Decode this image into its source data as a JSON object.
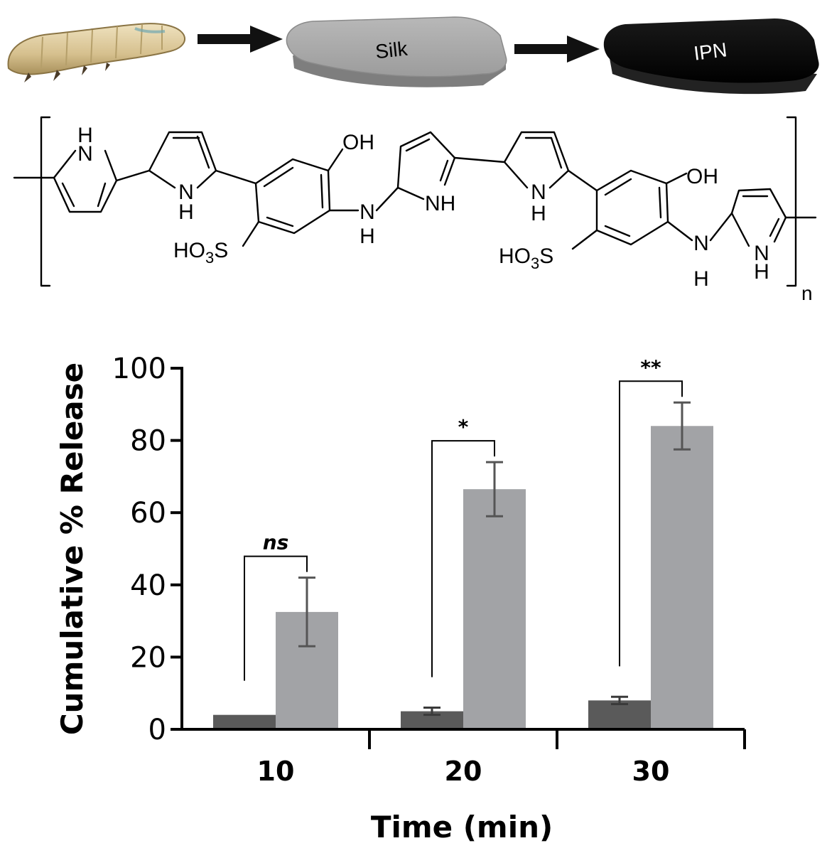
{
  "scheme": {
    "box1_label": "Silk",
    "box2_label": "IPN"
  },
  "structure": {
    "groups": {
      "nh_top": "N",
      "nh_top_h": "H",
      "nh_mid": "N",
      "nh_mid_h": "H",
      "oh1": "OH",
      "hso1_a": "HO",
      "hso1_sub": "3",
      "hso1_b": "S",
      "nh_link1": "N",
      "nh_link1_h": "H",
      "nh_p3": "NH",
      "nh_p4": "N",
      "nh_p4_h": "H",
      "oh2": "OH",
      "hso2_a": "HO",
      "hso2_sub": "3",
      "hso2_b": "S",
      "nh_link2": "N",
      "nh_link2_h": "H",
      "nh_p5": "N",
      "nh_p5_h": "H",
      "repeat_n": "n"
    }
  },
  "chart_data": {
    "type": "bar",
    "xlabel": "Time (min)",
    "ylabel": "Cumulative % Release",
    "categories": [
      "10",
      "20",
      "30"
    ],
    "ylim": [
      0,
      100
    ],
    "yticks": [
      0,
      20,
      40,
      60,
      80,
      100
    ],
    "ytick_labels": [
      "0",
      "20",
      "40",
      "60",
      "80",
      "100"
    ],
    "series": [
      {
        "color": "#5a5a5a",
        "values": [
          4,
          5,
          8
        ],
        "errors": [
          0,
          1,
          1
        ]
      },
      {
        "color": "#a2a3a6",
        "values": [
          32.5,
          66.5,
          84
        ],
        "errors": [
          9.5,
          7.5,
          6.5
        ]
      }
    ],
    "significance": [
      "ns",
      "*",
      "**"
    ]
  }
}
